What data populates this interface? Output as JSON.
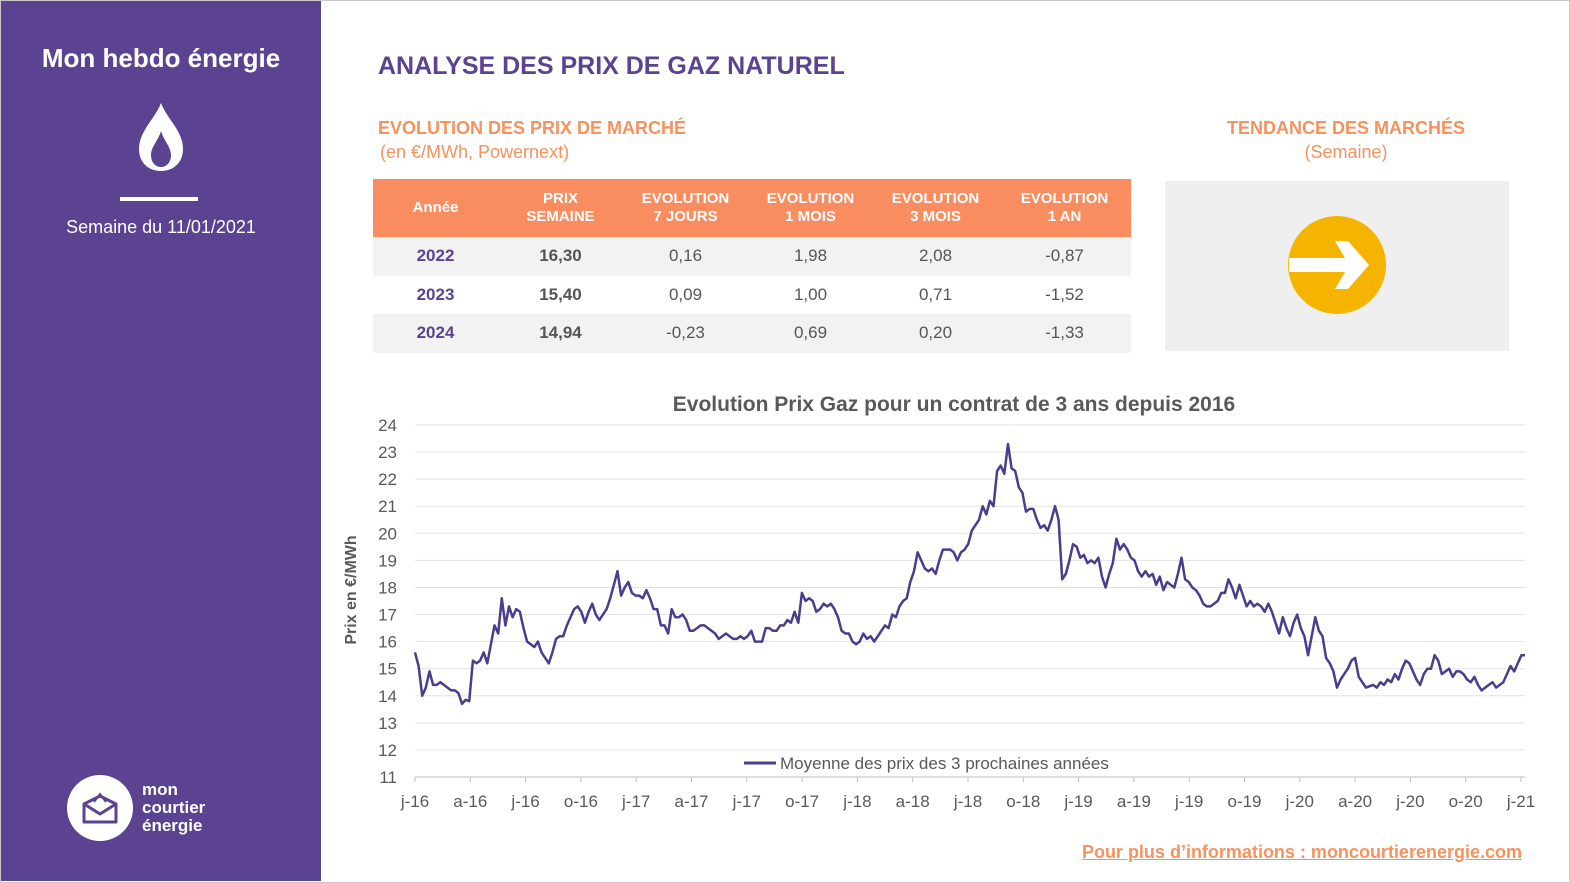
{
  "sidebar": {
    "title": "Mon hebdo énergie",
    "week_label": "Semaine du 11/01/2021",
    "logo_lines": [
      "mon",
      "courtier",
      "énergie"
    ],
    "icon": "flame-icon"
  },
  "header": {
    "title": "ANALYSE DES PRIX DE GAZ NATUREL"
  },
  "market": {
    "title": "EVOLUTION DES PRIX DE MARCHÉ",
    "subtitle": "(en €/MWh, Powernext)",
    "columns": [
      [
        "Année"
      ],
      [
        "PRIX",
        "SEMAINE"
      ],
      [
        "EVOLUTION",
        "7 JOURS"
      ],
      [
        "EVOLUTION",
        "1 MOIS"
      ],
      [
        "EVOLUTION",
        "3 MOIS"
      ],
      [
        "EVOLUTION",
        "1 AN"
      ]
    ],
    "rows": [
      [
        "2022",
        "16,30",
        "0,16",
        "1,98",
        "2,08",
        "-0,87"
      ],
      [
        "2023",
        "15,40",
        "0,09",
        "1,00",
        "0,71",
        "-1,52"
      ],
      [
        "2024",
        "14,94",
        "-0,23",
        "0,69",
        "0,20",
        "-1,33"
      ]
    ]
  },
  "trend": {
    "title": "TENDANCE DES MARCHÉS",
    "subtitle": "(Semaine)",
    "icon": "right-arrow-icon",
    "direction": "stable",
    "color": "#f5b400"
  },
  "colors": {
    "sidebar": "#5b4392",
    "accent": "#f5925e",
    "table_header": "#fa8d5f",
    "line": "#4b3c8c"
  },
  "chart_data": {
    "type": "line",
    "title": "Evolution Prix Gaz pour un contrat de 3 ans depuis 2016",
    "ylabel": "Prix en €/MWh",
    "xlabel": "",
    "ylim": [
      11,
      24
    ],
    "yticks": [
      11,
      12,
      13,
      14,
      15,
      16,
      17,
      18,
      19,
      20,
      21,
      22,
      23,
      24
    ],
    "xticks": [
      "j-16",
      "a-16",
      "j-16",
      "o-16",
      "j-17",
      "a-17",
      "j-17",
      "o-17",
      "j-18",
      "a-18",
      "j-18",
      "o-18",
      "j-19",
      "a-19",
      "j-19",
      "o-19",
      "j-20",
      "a-20",
      "j-20",
      "o-20",
      "j-21"
    ],
    "grid": true,
    "legend": "bottom",
    "series": [
      {
        "name": "Moyenne des prix des 3 prochaines années",
        "x_start": "2016-01-04",
        "x_step_days": 7,
        "values": [
          15.6,
          15.1,
          14.0,
          14.3,
          14.9,
          14.4,
          14.4,
          14.5,
          14.4,
          14.3,
          14.2,
          14.2,
          14.1,
          13.7,
          13.85,
          13.8,
          15.3,
          15.2,
          15.3,
          15.6,
          15.2,
          15.9,
          16.6,
          16.3,
          17.6,
          16.6,
          17.3,
          16.9,
          17.2,
          17.1,
          16.5,
          16.0,
          15.9,
          15.8,
          16.0,
          15.6,
          15.4,
          15.2,
          15.6,
          16.1,
          16.2,
          16.2,
          16.6,
          16.9,
          17.2,
          17.3,
          17.1,
          16.7,
          17.1,
          17.4,
          17.0,
          16.8,
          17.0,
          17.2,
          17.6,
          18.1,
          18.6,
          17.7,
          18.0,
          18.2,
          17.8,
          17.7,
          17.7,
          17.6,
          17.9,
          17.6,
          17.2,
          17.2,
          16.6,
          16.6,
          16.3,
          17.2,
          16.9,
          16.9,
          17.0,
          16.8,
          16.4,
          16.4,
          16.5,
          16.6,
          16.6,
          16.5,
          16.4,
          16.3,
          16.1,
          16.2,
          16.3,
          16.2,
          16.1,
          16.1,
          16.2,
          16.1,
          16.2,
          16.4,
          16.0,
          16.0,
          16.0,
          16.5,
          16.5,
          16.4,
          16.4,
          16.6,
          16.6,
          16.8,
          16.7,
          17.1,
          16.7,
          17.8,
          17.5,
          17.6,
          17.5,
          17.1,
          17.2,
          17.4,
          17.3,
          17.4,
          17.2,
          16.9,
          16.4,
          16.3,
          16.3,
          16.0,
          15.9,
          16.0,
          16.3,
          16.1,
          16.2,
          16.0,
          16.2,
          16.4,
          16.6,
          16.5,
          17.0,
          16.9,
          17.3,
          17.5,
          17.6,
          18.2,
          18.6,
          19.3,
          19.0,
          18.7,
          18.6,
          18.7,
          18.5,
          19.0,
          19.4,
          19.4,
          19.4,
          19.3,
          19.0,
          19.3,
          19.4,
          19.6,
          20.1,
          20.3,
          20.5,
          21.0,
          20.7,
          21.2,
          21.0,
          22.3,
          22.5,
          22.2,
          23.3,
          22.4,
          22.3,
          21.7,
          21.5,
          20.8,
          20.9,
          20.9,
          20.5,
          20.2,
          20.3,
          20.1,
          20.5,
          21.0,
          20.5,
          18.3,
          18.5,
          19.0,
          19.6,
          19.5,
          19.1,
          19.2,
          18.9,
          19.0,
          18.9,
          19.1,
          18.4,
          18.0,
          18.5,
          18.9,
          19.8,
          19.4,
          19.6,
          19.4,
          19.1,
          19.0,
          18.6,
          18.4,
          18.6,
          18.4,
          18.5,
          18.1,
          18.4,
          17.9,
          18.2,
          18.1,
          18.0,
          18.5,
          19.1,
          18.3,
          18.2,
          18.0,
          17.9,
          17.7,
          17.4,
          17.3,
          17.3,
          17.4,
          17.5,
          17.8,
          17.8,
          18.3,
          18.0,
          17.6,
          18.1,
          17.7,
          17.3,
          17.5,
          17.3,
          17.4,
          17.3,
          17.1,
          17.4,
          17.1,
          16.7,
          16.3,
          16.9,
          16.5,
          16.2,
          16.7,
          17.0,
          16.5,
          16.2,
          15.5,
          16.2,
          16.9,
          16.4,
          16.2,
          15.4,
          15.2,
          14.9,
          14.3,
          14.6,
          14.8,
          15.0,
          15.3,
          15.4,
          14.7,
          14.5,
          14.3,
          14.35,
          14.4,
          14.3,
          14.5,
          14.4,
          14.6,
          14.5,
          14.8,
          14.6,
          15.0,
          15.3,
          15.2,
          14.9,
          14.6,
          14.4,
          14.8,
          15.0,
          15.0,
          15.5,
          15.3,
          14.8,
          14.9,
          15.0,
          14.7,
          14.9,
          14.9,
          14.8,
          14.6,
          14.5,
          14.7,
          14.4,
          14.2,
          14.3,
          14.4,
          14.5,
          14.3,
          14.4,
          14.5,
          14.8,
          15.1,
          14.9,
          15.2,
          15.5,
          15.5
        ]
      }
    ]
  },
  "footer": {
    "link_text": "Pour plus d’informations : moncourtierenergie.com"
  }
}
